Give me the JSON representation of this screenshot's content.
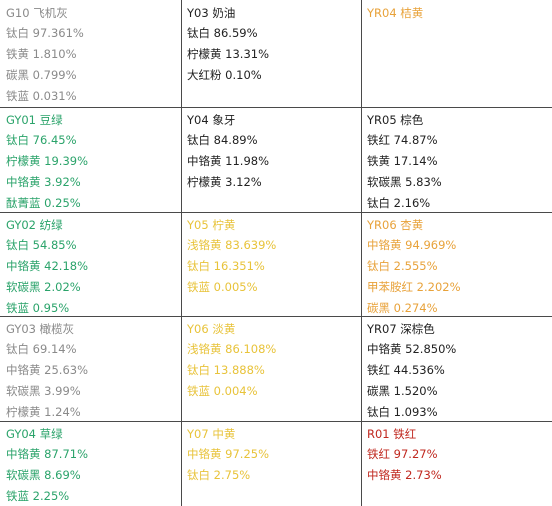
{
  "colors": {
    "gray": "#8a8a8a",
    "dark": "#222222",
    "green": "#2aa36a",
    "yellow": "#e8c33a",
    "orange": "#e8a23a",
    "red": "#c0281f"
  },
  "rows": [
    [
      {
        "title": "G10 飞机灰",
        "color": "gray",
        "items": [
          "钛白 97.361%",
          "铁黄 1.810%",
          "碳黑 0.799%",
          "铁蓝 0.031%"
        ]
      },
      {
        "title": "Y03 奶油",
        "color": "dark",
        "items": [
          "钛白 86.59%",
          "柠檬黄 13.31%",
          "大红粉 0.10%"
        ]
      },
      {
        "title": "YR04 桔黄",
        "color": "orange",
        "items": []
      }
    ],
    [
      {
        "title": "GY01 豆绿",
        "color": "green",
        "items": [
          "钛白 76.45%",
          "柠檬黄 19.39%",
          "中铬黄 3.92%",
          "酞菁蓝 0.25%"
        ]
      },
      {
        "title": "Y04 象牙",
        "color": "dark",
        "items": [
          "钛白 84.89%",
          "中铬黄 11.98%",
          "柠檬黄 3.12%"
        ]
      },
      {
        "title": "YR05 棕色",
        "color": "dark",
        "items": [
          "铁红 74.87%",
          "铁黄 17.14%",
          "软碳黑 5.83%",
          "钛白 2.16%"
        ]
      }
    ],
    [
      {
        "title": "GY02 纺绿",
        "color": "green",
        "items": [
          "钛白 54.85%",
          "中铬黄 42.18%",
          "软碳黑 2.02%",
          "铁蓝 0.95%"
        ]
      },
      {
        "title": "Y05 柠黄",
        "color": "yellow",
        "items": [
          "浅铬黄 83.639%",
          "钛白 16.351%",
          "铁蓝 0.005%"
        ]
      },
      {
        "title": "YR06 杏黄",
        "color": "orange",
        "items": [
          "中铬黄 94.969%",
          "钛白 2.555%",
          "甲苯胺红 2.202%",
          "碳黑 0.274%"
        ]
      }
    ],
    [
      {
        "title": "GY03 橄榄灰",
        "color": "gray",
        "items": [
          "钛白 69.14%",
          "中铬黄 25.63%",
          "软碳黑 3.99%",
          "柠檬黄 1.24%"
        ]
      },
      {
        "title": "Y06 淡黄",
        "color": "yellow",
        "items": [
          "浅铬黄 86.108%",
          "钛白 13.888%",
          "铁蓝 0.004%"
        ]
      },
      {
        "title": "YR07 深棕色",
        "color": "dark",
        "items": [
          "中铬黄 52.850%",
          "铁红 44.536%",
          "碳黑 1.520%",
          "钛白 1.093%"
        ]
      }
    ],
    [
      {
        "title": "GY04 草绿",
        "color": "green",
        "items": [
          "中铬黄 87.71%",
          "软碳黑 8.69%",
          "铁蓝 2.25%"
        ]
      },
      {
        "title": "Y07 中黄",
        "color": "yellow",
        "items": [
          "中铬黄 97.25%",
          "钛白 2.75%"
        ]
      },
      {
        "title": "R01 铁红",
        "color": "red",
        "items": [
          "铁红 97.27%",
          "中铬黄 2.73%"
        ]
      }
    ]
  ]
}
